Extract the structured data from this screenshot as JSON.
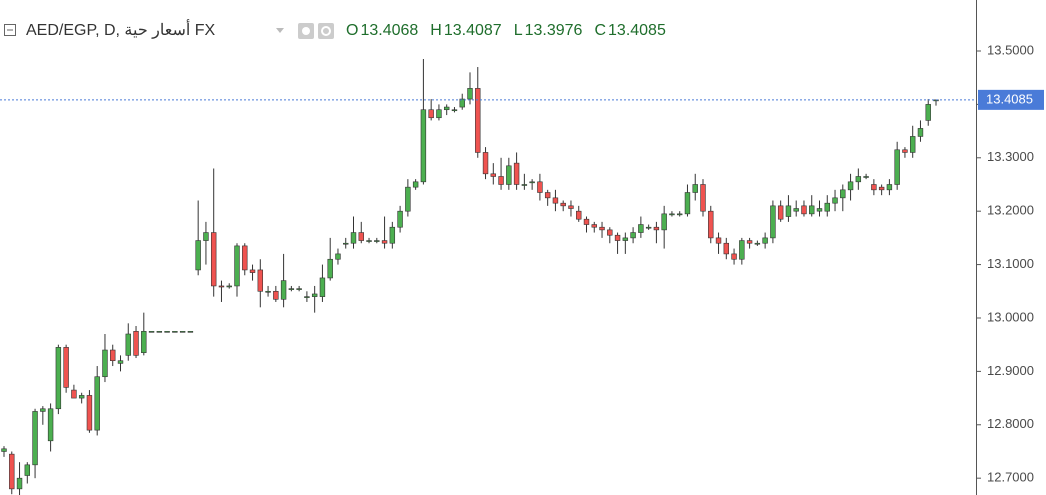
{
  "chart_data": {
    "type": "candlestick",
    "title": "AED/EGP, D, أسعار حية FX",
    "ohlc_labels": [
      "O",
      "H",
      "L",
      "C"
    ],
    "up_color": "#4caf50",
    "down_color": "#ef5350",
    "price_line_color": "#4a7bd8",
    "ylim": [
      12.6685,
      13.5955
    ],
    "yticks": [
      {
        "value": 12.7,
        "label": "12.7000"
      },
      {
        "value": 12.8,
        "label": "12.8000"
      },
      {
        "value": 12.9,
        "label": "12.9000"
      },
      {
        "value": 13.0,
        "label": "13.0000"
      },
      {
        "value": 13.1,
        "label": "13.1000"
      },
      {
        "value": 13.2,
        "label": "13.2000"
      },
      {
        "value": 13.3,
        "label": "13.3000"
      },
      {
        "value": 13.4,
        "label": "13.4000"
      },
      {
        "value": 13.5,
        "label": "13.5000"
      }
    ],
    "grid": false,
    "candles": [
      [
        12.75,
        12.76,
        12.74,
        12.755
      ],
      [
        12.745,
        12.75,
        12.67,
        12.68
      ],
      [
        12.68,
        12.73,
        12.665,
        12.7
      ],
      [
        12.705,
        12.73,
        12.69,
        12.725
      ],
      [
        12.725,
        12.83,
        12.7,
        12.825
      ],
      [
        12.825,
        12.835,
        12.8,
        12.83
      ],
      [
        12.77,
        12.84,
        12.75,
        12.83
      ],
      [
        12.83,
        12.95,
        12.82,
        12.945
      ],
      [
        12.945,
        12.95,
        12.86,
        12.87
      ],
      [
        12.865,
        12.875,
        12.85,
        12.85
      ],
      [
        12.85,
        12.86,
        12.84,
        12.855
      ],
      [
        12.855,
        12.865,
        12.785,
        12.79
      ],
      [
        12.79,
        12.91,
        12.78,
        12.89
      ],
      [
        12.89,
        12.97,
        12.88,
        12.94
      ],
      [
        12.94,
        12.95,
        12.91,
        12.92
      ],
      [
        12.915,
        12.93,
        12.9,
        12.92
      ],
      [
        12.93,
        12.99,
        12.92,
        12.97
      ],
      [
        12.975,
        12.985,
        12.925,
        12.93
      ],
      [
        12.935,
        13.01,
        12.93,
        12.975
      ],
      [
        12.975,
        12.975,
        12.975,
        12.975
      ],
      [
        12.975,
        12.975,
        12.975,
        12.975
      ],
      [
        12.975,
        12.975,
        12.975,
        12.975
      ],
      [
        12.975,
        12.975,
        12.975,
        12.975
      ],
      [
        12.975,
        12.975,
        12.975,
        12.975
      ],
      [
        12.975,
        12.975,
        12.975,
        12.975
      ],
      [
        13.09,
        13.22,
        13.08,
        13.145
      ],
      [
        13.145,
        13.18,
        13.1,
        13.16
      ],
      [
        13.16,
        13.28,
        13.04,
        13.06
      ],
      [
        13.06,
        13.07,
        13.03,
        13.058
      ],
      [
        13.06,
        13.065,
        13.055,
        13.06
      ],
      [
        13.06,
        13.14,
        13.04,
        13.135
      ],
      [
        13.135,
        13.14,
        13.08,
        13.09
      ],
      [
        13.09,
        13.1,
        13.07,
        13.085
      ],
      [
        13.09,
        13.11,
        13.02,
        13.05
      ],
      [
        13.05,
        13.06,
        13.04,
        13.05
      ],
      [
        13.05,
        13.06,
        13.03,
        13.035
      ],
      [
        13.035,
        13.12,
        13.02,
        13.07
      ],
      [
        13.055,
        13.06,
        13.05,
        13.055
      ],
      [
        13.055,
        13.06,
        13.05,
        13.055
      ],
      [
        13.04,
        13.05,
        13.03,
        13.04
      ],
      [
        13.04,
        13.06,
        13.01,
        13.045
      ],
      [
        13.04,
        13.1,
        13.03,
        13.075
      ],
      [
        13.075,
        13.15,
        13.07,
        13.11
      ],
      [
        13.11,
        13.13,
        13.1,
        13.12
      ],
      [
        13.14,
        13.15,
        13.13,
        13.14
      ],
      [
        13.14,
        13.19,
        13.13,
        13.16
      ],
      [
        13.16,
        13.18,
        13.14,
        13.145
      ],
      [
        13.145,
        13.15,
        13.14,
        13.145
      ],
      [
        13.145,
        13.15,
        13.14,
        13.145
      ],
      [
        13.145,
        13.19,
        13.13,
        13.14
      ],
      [
        13.14,
        13.18,
        13.13,
        13.17
      ],
      [
        13.17,
        13.21,
        13.16,
        13.2
      ],
      [
        13.2,
        13.26,
        13.19,
        13.245
      ],
      [
        13.245,
        13.26,
        13.24,
        13.255
      ],
      [
        13.255,
        13.485,
        13.25,
        13.39
      ],
      [
        13.39,
        13.41,
        13.37,
        13.375
      ],
      [
        13.375,
        13.4,
        13.37,
        13.39
      ],
      [
        13.39,
        13.4,
        13.38,
        13.395
      ],
      [
        13.39,
        13.395,
        13.385,
        13.39
      ],
      [
        13.395,
        13.42,
        13.39,
        13.41
      ],
      [
        13.41,
        13.46,
        13.4,
        13.43
      ],
      [
        13.43,
        13.47,
        13.3,
        13.31
      ],
      [
        13.31,
        13.32,
        13.26,
        13.27
      ],
      [
        13.27,
        13.29,
        13.25,
        13.265
      ],
      [
        13.265,
        13.3,
        13.24,
        13.25
      ],
      [
        13.25,
        13.3,
        13.24,
        13.285
      ],
      [
        13.29,
        13.31,
        13.24,
        13.25
      ],
      [
        13.25,
        13.27,
        13.24,
        13.25
      ],
      [
        13.255,
        13.26,
        13.24,
        13.255
      ],
      [
        13.255,
        13.27,
        13.22,
        13.235
      ],
      [
        13.235,
        13.24,
        13.21,
        13.225
      ],
      [
        13.225,
        13.24,
        13.2,
        13.215
      ],
      [
        13.215,
        13.22,
        13.2,
        13.21
      ],
      [
        13.21,
        13.22,
        13.19,
        13.205
      ],
      [
        13.2,
        13.21,
        13.18,
        13.185
      ],
      [
        13.185,
        13.19,
        13.16,
        13.175
      ],
      [
        13.175,
        13.18,
        13.16,
        13.17
      ],
      [
        13.17,
        13.18,
        13.15,
        13.165
      ],
      [
        13.165,
        13.17,
        13.14,
        13.155
      ],
      [
        13.155,
        13.16,
        13.12,
        13.145
      ],
      [
        13.145,
        13.16,
        13.12,
        13.15
      ],
      [
        13.15,
        13.17,
        13.14,
        13.16
      ],
      [
        13.16,
        13.19,
        13.15,
        13.175
      ],
      [
        13.17,
        13.175,
        13.165,
        13.17
      ],
      [
        13.17,
        13.18,
        13.14,
        13.165
      ],
      [
        13.165,
        13.21,
        13.13,
        13.195
      ],
      [
        13.195,
        13.2,
        13.19,
        13.195
      ],
      [
        13.195,
        13.2,
        13.19,
        13.195
      ],
      [
        13.195,
        13.25,
        13.19,
        13.235
      ],
      [
        13.235,
        13.27,
        13.22,
        13.25
      ],
      [
        13.25,
        13.26,
        13.19,
        13.2
      ],
      [
        13.2,
        13.21,
        13.14,
        13.15
      ],
      [
        13.15,
        13.16,
        13.12,
        13.14
      ],
      [
        13.14,
        13.15,
        13.11,
        13.12
      ],
      [
        13.12,
        13.13,
        13.1,
        13.11
      ],
      [
        13.11,
        13.15,
        13.1,
        13.145
      ],
      [
        13.145,
        13.15,
        13.13,
        13.14
      ],
      [
        13.14,
        13.145,
        13.135,
        13.14
      ],
      [
        13.14,
        13.16,
        13.13,
        13.15
      ],
      [
        13.15,
        13.22,
        13.14,
        13.21
      ],
      [
        13.21,
        13.22,
        13.18,
        13.185
      ],
      [
        13.19,
        13.23,
        13.18,
        13.21
      ],
      [
        13.2,
        13.22,
        13.19,
        13.205
      ],
      [
        13.21,
        13.22,
        13.19,
        13.195
      ],
      [
        13.195,
        13.23,
        13.19,
        13.21
      ],
      [
        13.2,
        13.22,
        13.19,
        13.205
      ],
      [
        13.2,
        13.23,
        13.19,
        13.215
      ],
      [
        13.215,
        13.24,
        13.2,
        13.225
      ],
      [
        13.225,
        13.25,
        13.2,
        13.24
      ],
      [
        13.24,
        13.27,
        13.22,
        13.255
      ],
      [
        13.255,
        13.28,
        13.24,
        13.265
      ],
      [
        13.265,
        13.27,
        13.26,
        13.265
      ],
      [
        13.25,
        13.26,
        13.23,
        13.24
      ],
      [
        13.245,
        13.25,
        13.23,
        13.24
      ],
      [
        13.24,
        13.26,
        13.23,
        13.25
      ],
      [
        13.25,
        13.33,
        13.24,
        13.315
      ],
      [
        13.315,
        13.32,
        13.3,
        13.31
      ],
      [
        13.31,
        13.36,
        13.3,
        13.34
      ],
      [
        13.34,
        13.37,
        13.33,
        13.355
      ],
      [
        13.37,
        13.41,
        13.36,
        13.4
      ],
      [
        13.4068,
        13.4087,
        13.3976,
        13.4085
      ]
    ]
  }
}
